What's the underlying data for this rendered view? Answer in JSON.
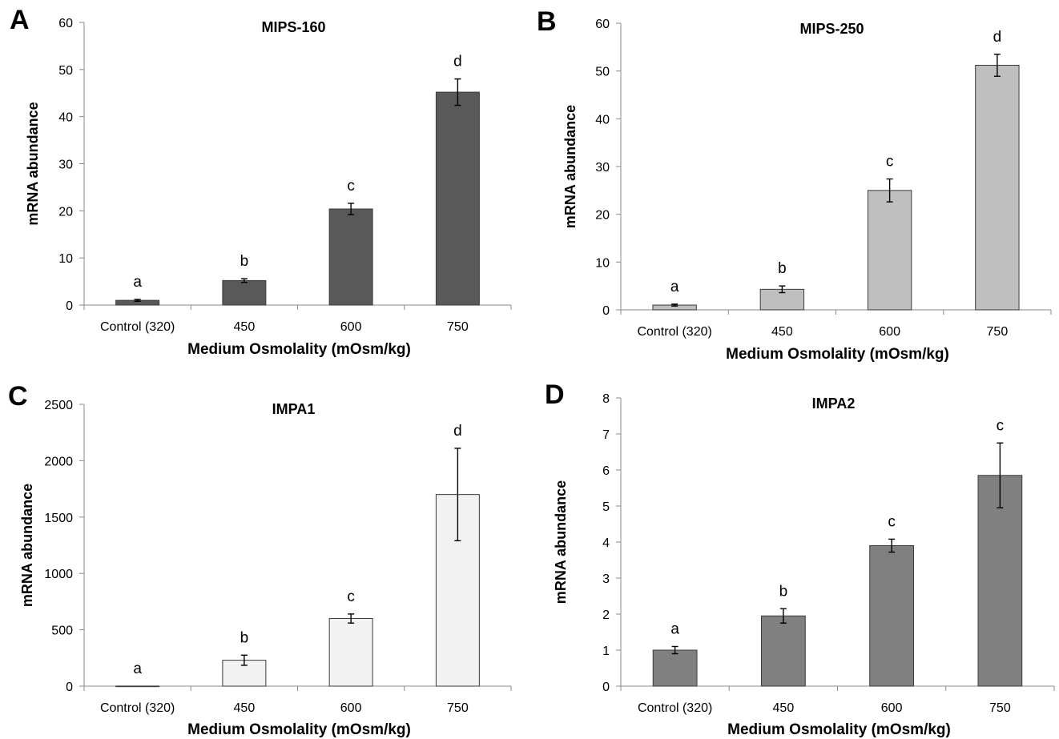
{
  "chart_data": [
    {
      "panel": "A",
      "type": "bar",
      "title": "MIPS-160",
      "xlabel": "Medium Osmolality (mOsm/kg)",
      "ylabel": "mRNA abundance",
      "ylim": [
        0,
        60
      ],
      "yticks": [
        0,
        10,
        20,
        30,
        40,
        50,
        60
      ],
      "categories": [
        "Control (320)",
        "450",
        "600",
        "750"
      ],
      "values": [
        1.0,
        5.2,
        20.4,
        45.2
      ],
      "errors": [
        0.2,
        0.4,
        1.2,
        2.8
      ],
      "significance": [
        "a",
        "b",
        "c",
        "d"
      ],
      "bar_color": "#595959"
    },
    {
      "panel": "B",
      "type": "bar",
      "title": "MIPS-250",
      "xlabel": "Medium Osmolality (mOsm/kg)",
      "ylabel": "mRNA abundance",
      "ylim": [
        0,
        60
      ],
      "yticks": [
        0,
        10,
        20,
        30,
        40,
        50,
        60
      ],
      "categories": [
        "Control (320)",
        "450",
        "600",
        "750"
      ],
      "values": [
        1.0,
        4.3,
        25.0,
        51.2
      ],
      "errors": [
        0.2,
        0.7,
        2.4,
        2.3
      ],
      "significance": [
        "a",
        "b",
        "c",
        "d"
      ],
      "bar_color": "#bfbfbf"
    },
    {
      "panel": "C",
      "type": "bar",
      "title": "IMPA1",
      "xlabel": "Medium Osmolality (mOsm/kg)",
      "ylabel": "mRNA abundance",
      "ylim": [
        0,
        2500
      ],
      "yticks": [
        0,
        500,
        1000,
        1500,
        2000,
        2500
      ],
      "categories": [
        "Control (320)",
        "450",
        "600",
        "750"
      ],
      "values": [
        1,
        230,
        600,
        1700
      ],
      "errors": [
        0,
        45,
        40,
        410
      ],
      "significance": [
        "a",
        "b",
        "c",
        "d"
      ],
      "bar_color": "#f2f2f2"
    },
    {
      "panel": "D",
      "type": "bar",
      "title": "IMPA2",
      "xlabel": "Medium Osmolality (mOsm/kg)",
      "ylabel": "mRNA abundance",
      "ylim": [
        0,
        8
      ],
      "yticks": [
        0,
        1,
        2,
        3,
        4,
        5,
        6,
        7,
        8
      ],
      "categories": [
        "Control (320)",
        "450",
        "600",
        "750"
      ],
      "values": [
        1.0,
        1.95,
        3.9,
        5.85
      ],
      "errors": [
        0.1,
        0.2,
        0.18,
        0.9
      ],
      "significance": [
        "a",
        "b",
        "c",
        "c"
      ],
      "bar_color": "#808080"
    }
  ]
}
